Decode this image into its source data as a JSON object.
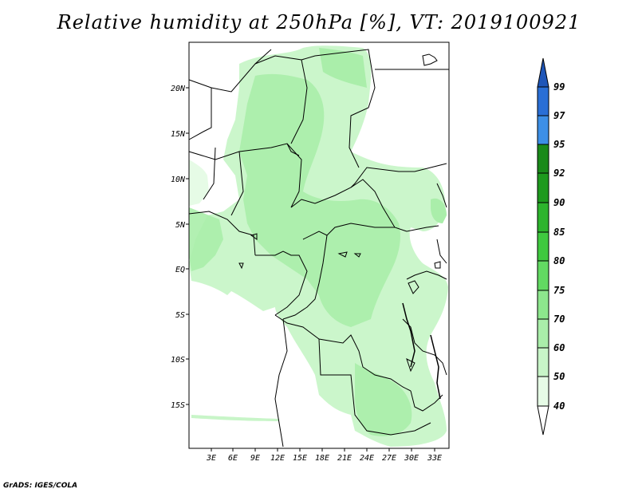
{
  "title": "Relative humidity at 250hPa [%], VT: 2019100921",
  "footer": "GrADS: IGES/COLA",
  "map": {
    "lat_labels": [
      "20N",
      "15N",
      "10N",
      "5N",
      "EQ",
      "5S",
      "10S",
      "15S"
    ],
    "lon_labels": [
      "3E",
      "6E",
      "9E",
      "12E",
      "15E",
      "18E",
      "21E",
      "24E",
      "27E",
      "30E",
      "33E"
    ],
    "field_color": "#aaeeaa"
  },
  "colorbar": {
    "levels": [
      "40",
      "50",
      "60",
      "70",
      "75",
      "80",
      "85",
      "90",
      "92",
      "95",
      "97",
      "99"
    ],
    "colors": [
      "#ffffff",
      "#e6fbe6",
      "#c8f5c8",
      "#aaeeaa",
      "#8de68d",
      "#62d962",
      "#3fc93f",
      "#2db42d",
      "#1e9a1e",
      "#1a8a1a",
      "#3d8fe6",
      "#2a6fd6",
      "#1f56b8"
    ]
  }
}
